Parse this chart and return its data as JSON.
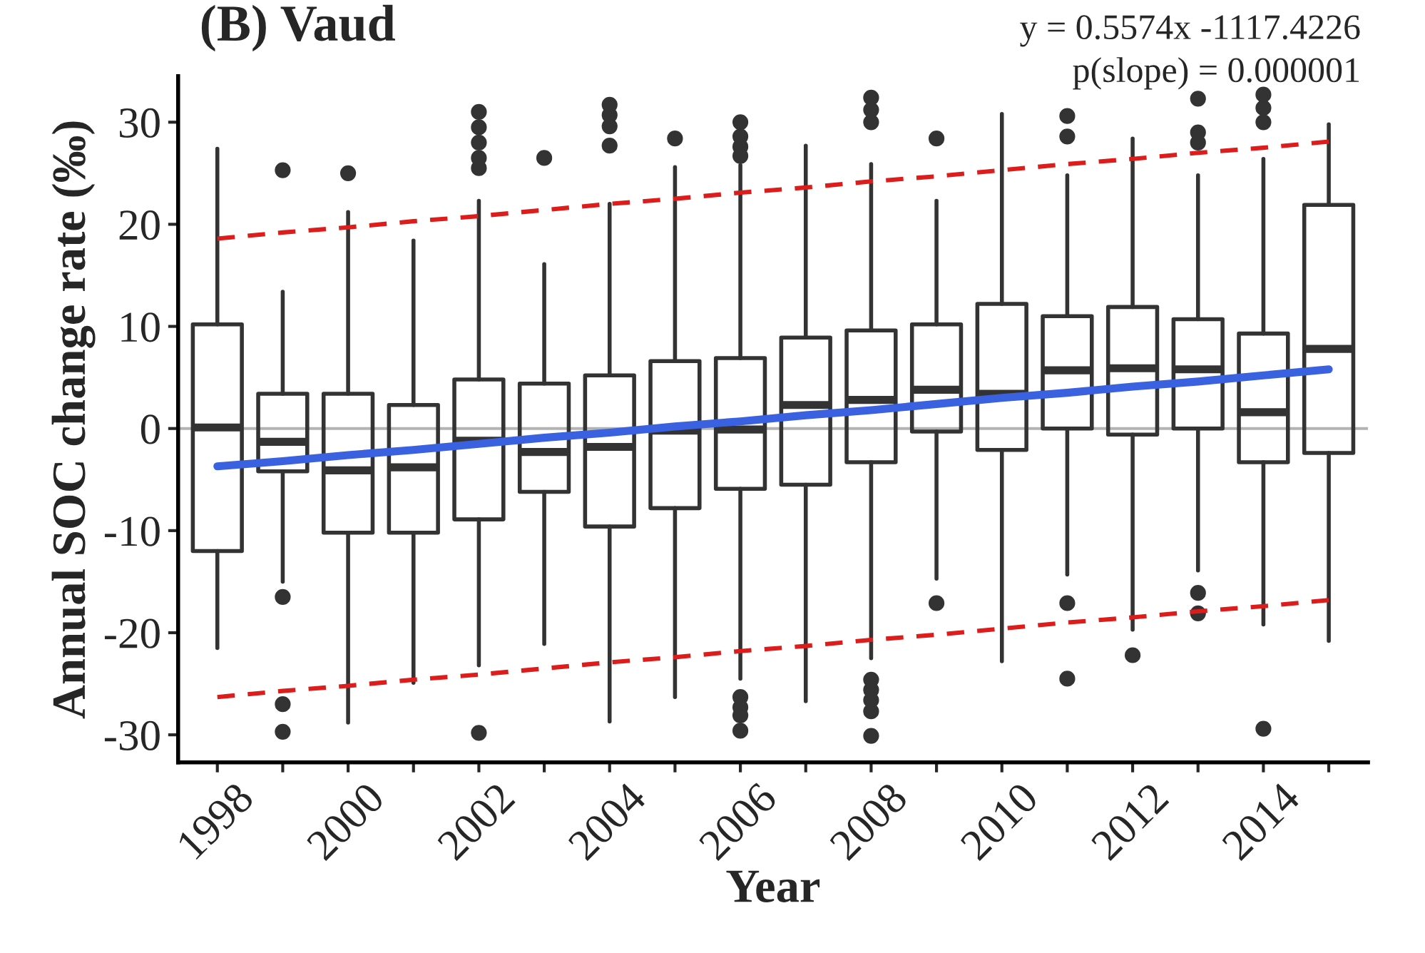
{
  "chart_data": {
    "type": "box",
    "title": "(B) Vaud",
    "xlabel": "Year",
    "ylabel": "Annual SOC change rate (‰)",
    "annotations": [
      "y = 0.5574x -1117.4226",
      "p(slope) = 0.000001"
    ],
    "categories": [
      "1998",
      null,
      "2000",
      null,
      "2002",
      null,
      "2004",
      null,
      "2006",
      null,
      "2008",
      null,
      "2010",
      null,
      "2012",
      null,
      "2014",
      null
    ],
    "color": "#333333",
    "boxes": [
      {
        "low": -21.5,
        "q1": -12,
        "median": 0.1,
        "q3": 10.2,
        "high": 27.4
      },
      {
        "low": -15,
        "q1": -4.2,
        "median": -1.3,
        "q3": 3.4,
        "high": 13.4,
        "outliers": [
          25.3,
          -16.5,
          -27,
          -29.7
        ]
      },
      {
        "low": -28.8,
        "q1": -10.2,
        "median": -4.1,
        "q3": 3.4,
        "high": 21.2,
        "outliers": [
          25
        ]
      },
      {
        "low": -24.9,
        "q1": -10.2,
        "median": -3.8,
        "q3": 2.3,
        "high": 18.4
      },
      {
        "low": -23.2,
        "q1": -8.9,
        "median": -1.2,
        "q3": 4.8,
        "high": 22.3,
        "outliers": [
          25.5,
          26.5,
          28,
          29.5,
          31,
          -29.8
        ]
      },
      {
        "low": -21.1,
        "q1": -6.2,
        "median": -2.3,
        "q3": 4.4,
        "high": 16.1,
        "outliers": [
          26.5
        ]
      },
      {
        "low": -28.7,
        "q1": -9.6,
        "median": -1.8,
        "q3": 5.2,
        "high": 22,
        "outliers": [
          27.7,
          29.6,
          30.7,
          31.7
        ]
      },
      {
        "low": -26.3,
        "q1": -7.8,
        "median": -0.2,
        "q3": 6.6,
        "high": 25.6,
        "outliers": [
          28.4
        ]
      },
      {
        "low": -24.5,
        "q1": -5.9,
        "median": -0.1,
        "q3": 6.9,
        "high": 25.8,
        "outliers": [
          26.7,
          27.6,
          28.6,
          30,
          -26.3,
          -27.3,
          -28.1,
          -29.6
        ]
      },
      {
        "low": -26.7,
        "q1": -5.5,
        "median": 2.3,
        "q3": 8.9,
        "high": 27.7
      },
      {
        "low": -22.5,
        "q1": -3.3,
        "median": 2.8,
        "q3": 9.6,
        "high": 25.9,
        "outliers": [
          30,
          31.2,
          32.4,
          -24.6,
          -25.6,
          -26.6,
          -27.7,
          -30.1
        ]
      },
      {
        "low": -14.7,
        "q1": -0.3,
        "median": 3.8,
        "q3": 10.2,
        "high": 22.3,
        "outliers": [
          28.4,
          -17.1
        ]
      },
      {
        "low": -22.8,
        "q1": -2.1,
        "median": 3.4,
        "q3": 12.2,
        "high": 30.8
      },
      {
        "low": -14.3,
        "q1": 0,
        "median": 5.7,
        "q3": 11,
        "high": 24.8,
        "outliers": [
          28.6,
          30.6,
          -17.1,
          -24.5
        ]
      },
      {
        "low": -19.7,
        "q1": -0.6,
        "median": 5.9,
        "q3": 11.9,
        "high": 28.4,
        "outliers": [
          -22.2
        ]
      },
      {
        "low": -13.9,
        "q1": 0,
        "median": 5.8,
        "q3": 10.7,
        "high": 24.8,
        "outliers": [
          28,
          29,
          32.3,
          -16.1,
          -18.1
        ]
      },
      {
        "low": -19.2,
        "q1": -3.3,
        "median": 1.6,
        "q3": 9.3,
        "high": 26.4,
        "outliers": [
          30,
          31.4,
          32.7,
          -29.4
        ]
      },
      {
        "low": -20.8,
        "q1": -2.4,
        "median": 7.8,
        "q3": 21.9,
        "high": 29.8
      }
    ],
    "series": [
      {
        "type": "line",
        "color": "#3a62e0",
        "line_style": "solid",
        "values": [
          -3.7,
          -3.2,
          -2.6,
          -2.1,
          -1.5,
          -0.9,
          -0.4,
          0.2,
          0.7,
          1.3,
          1.8,
          2.4,
          3.0,
          3.5,
          4.1,
          4.6,
          5.2,
          5.8
        ]
      },
      {
        "type": "line",
        "color": "#dd1c1c",
        "line_style": "dashed",
        "values": [
          18.6,
          19.2,
          19.7,
          20.3,
          20.8,
          21.4,
          22.0,
          22.5,
          23.1,
          23.6,
          24.2,
          24.7,
          25.3,
          25.9,
          26.4,
          27.0,
          27.5,
          28.1
        ]
      },
      {
        "type": "line",
        "color": "#dd1c1c",
        "line_style": "dashed",
        "values": [
          -26.3,
          -25.7,
          -25.2,
          -24.6,
          -24.1,
          -23.5,
          -22.9,
          -22.4,
          -21.8,
          -21.3,
          -20.7,
          -20.2,
          -19.6,
          -19.0,
          -18.5,
          -17.9,
          -17.4,
          -16.8
        ]
      }
    ],
    "ref_lines": [
      {
        "axis": "y",
        "value": 0,
        "color": "#b3b3b3"
      }
    ],
    "ylim": [
      -32.7,
      34.5
    ],
    "yticks": [
      -30,
      -20,
      -10,
      0,
      10,
      20,
      30
    ],
    "grid": false,
    "legend": false
  }
}
